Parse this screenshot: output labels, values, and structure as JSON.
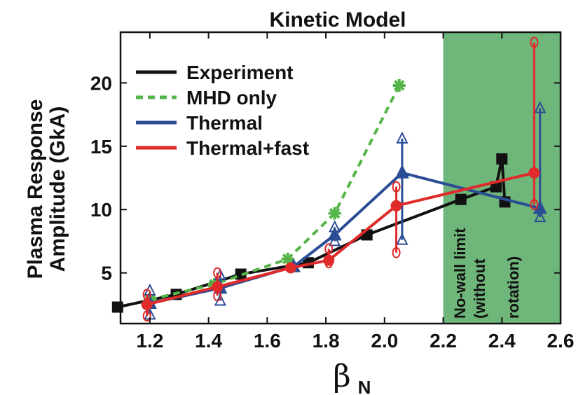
{
  "chart_data": {
    "type": "line",
    "title": "Kinetic Model",
    "xlabel": {
      "symbol": "β",
      "subscript": "N"
    },
    "ylabel_lines": [
      "Plasma Response",
      "Amplitude (GkA)"
    ],
    "xlim": [
      1.1,
      2.6
    ],
    "ylim": [
      1,
      24
    ],
    "xticks": [
      "1.2",
      "1.4",
      "1.6",
      "1.8",
      "2.0",
      "2.2",
      "2.4",
      "2.6"
    ],
    "yticks": [
      "5",
      "10",
      "15",
      "20"
    ],
    "shaded_region": {
      "x_range": [
        2.2,
        2.6
      ],
      "color": "#6fb67a",
      "label_lines": [
        "No-wall limit",
        "(without",
        "rotation)"
      ]
    },
    "legend": {
      "placement": "top-left"
    },
    "series": [
      {
        "name": "Experiment",
        "color": "#111111",
        "style": "solid",
        "marker": "square",
        "x": [
          1.09,
          1.29,
          1.51,
          1.74,
          1.94,
          2.26,
          2.38,
          2.4,
          2.41
        ],
        "y": [
          2.3,
          3.3,
          4.9,
          5.8,
          8.0,
          10.8,
          11.8,
          14.0,
          10.6
        ]
      },
      {
        "name": "MHD only",
        "color": "#55b548",
        "style": "dashed",
        "marker": "star",
        "x": [
          1.2,
          1.42,
          1.67,
          1.83,
          2.05
        ],
        "y": [
          2.9,
          4.1,
          6.1,
          9.7,
          19.8
        ]
      },
      {
        "name": "Thermal",
        "color": "#2b4d96",
        "style": "solid",
        "marker": "triangle",
        "x": [
          1.2,
          1.44,
          1.69,
          1.83,
          2.06,
          2.53
        ],
        "y": [
          2.6,
          3.8,
          5.5,
          8.0,
          12.9,
          10.1
        ],
        "bars": [
          {
            "x": 1.2,
            "low": 1.7,
            "high": 3.6
          },
          {
            "x": 1.44,
            "low": 2.8,
            "high": 4.8
          },
          {
            "x": 1.83,
            "low": 7.5,
            "high": 8.6
          },
          {
            "x": 2.06,
            "low": 7.6,
            "high": 15.6
          },
          {
            "x": 2.53,
            "low": 9.4,
            "high": 18.0
          }
        ]
      },
      {
        "name": "Thermal+fast",
        "color": "#e02a2a",
        "style": "solid",
        "marker": "circle",
        "x": [
          1.19,
          1.43,
          1.68,
          1.81,
          2.04,
          2.51
        ],
        "y": [
          2.5,
          3.9,
          5.4,
          6.0,
          10.3,
          12.9
        ],
        "bars": [
          {
            "x": 1.19,
            "low": 1.6,
            "high": 3.3
          },
          {
            "x": 1.43,
            "low": 3.2,
            "high": 5.0
          },
          {
            "x": 1.81,
            "low": 5.8,
            "high": 6.9
          },
          {
            "x": 2.04,
            "low": 6.6,
            "high": 11.8
          },
          {
            "x": 2.51,
            "low": 10.4,
            "high": 23.2
          }
        ]
      }
    ]
  }
}
